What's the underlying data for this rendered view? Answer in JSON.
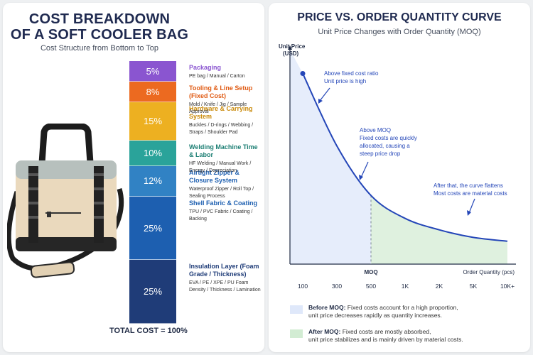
{
  "left": {
    "title_line1": "COST BREAKDOWN",
    "title_line2": "OF A SOFT COOLER BAG",
    "subtitle": "Cost Structure from Bottom to Top",
    "total": "TOTAL COST = 100%"
  },
  "right": {
    "title": "PRICE VS. ORDER QUANTITY CURVE",
    "subtitle": "Unit Price Changes with Order Quantity (MOQ)",
    "legend": [
      {
        "label": "Before MOQ:",
        "line1": "Fixed costs account for a high proportion,",
        "line2": "unit price decreases rapidly as quantity increases.",
        "color": "#dfe8fa"
      },
      {
        "label": "After MOQ:",
        "line1": "Fixed costs are mostly absorbed,",
        "line2": "unit price stabilizes and is mainly driven by material costs.",
        "color": "#d2ecd3"
      }
    ]
  },
  "colors": {
    "curve": "#2446b8",
    "before_region": "#e3ebfb",
    "after_region": "#dff1df"
  },
  "chart_data": [
    {
      "type": "bar",
      "stacked": true,
      "title": "COST BREAKDOWN OF A SOFT COOLER BAG",
      "subtitle": "Cost Structure from Bottom to Top",
      "unit": "%",
      "segments": [
        {
          "value": 25,
          "label": "25%",
          "name": "Insulation Layer (Foam Grade / Thickness)",
          "desc_line1": "EVA / PE / XPE / PU Foam",
          "desc_line2": "Density / Thickness / Lamination",
          "color": "#1f3c78"
        },
        {
          "value": 25,
          "label": "25%",
          "name": "Shell Fabric & Coating",
          "desc_line1": "TPU / PVC Fabric / Coating /",
          "desc_line2": "Backing",
          "color": "#1d5fb0"
        },
        {
          "value": 12,
          "label": "12%",
          "name": "Airtight Zipper & Closure System",
          "desc_line1": "Waterproof Zipper / Roll Top /",
          "desc_line2": "Sealing Process",
          "color": "#3182c4"
        },
        {
          "value": 10,
          "label": "10%",
          "name": "Welding Machine Time & Labor",
          "desc_line1": "HF Welding / Manual Work /",
          "desc_line2": "Energy / Depreciation",
          "color": "#2aa39a"
        },
        {
          "value": 15,
          "label": "15%",
          "name": "Hardware & Carrying System",
          "desc_line1": "Buckles / D-rings / Webbing /",
          "desc_line2": "Straps / Shoulder Pad",
          "color": "#edb021"
        },
        {
          "value": 8,
          "label": "8%",
          "name": "Tooling & Line Setup (Fixed Cost)",
          "desc_line1": "Mold / Knife / Jig / Sample",
          "desc_line2": "Approval",
          "color": "#ec6a20"
        },
        {
          "value": 5,
          "label": "5%",
          "name": "Packaging",
          "desc_line1": "PE bag / Manual / Carton",
          "desc_line2": "",
          "color": "#8a55d0"
        }
      ],
      "name_colors": [
        "#1f3c78",
        "#1d5fb0",
        "#1d5fb0",
        "#1d7f74",
        "#c98a0b",
        "#e05a12",
        "#8a55d0"
      ]
    },
    {
      "type": "line",
      "title": "PRICE VS. ORDER QUANTITY CURVE",
      "subtitle": "Unit Price Changes with Order Quantity (MOQ)",
      "ylabel_line1": "Unit Price",
      "ylabel_line2": "(USD)",
      "xlabel": "Order Quantity (pcs)",
      "x_ticks": [
        "100",
        "300",
        "500",
        "1K",
        "2K",
        "5K",
        "10K+"
      ],
      "moq_label": "MOQ",
      "moq_tick_index": 2,
      "curve": [
        {
          "x": 100,
          "y": 1.0
        },
        {
          "x": 300,
          "y": 0.62
        },
        {
          "x": 500,
          "y": 0.36
        },
        {
          "x": 1000,
          "y": 0.24
        },
        {
          "x": 2000,
          "y": 0.18
        },
        {
          "x": 5000,
          "y": 0.14
        },
        {
          "x": 10000,
          "y": 0.12
        }
      ],
      "annotations": [
        {
          "line1": "Above fixed cost ratio",
          "line2": "Unit price is high",
          "line3": ""
        },
        {
          "line1": "Above MOQ",
          "line2": "Fixed costs are quickly",
          "line3": "allocated, causing a",
          "line4": "steep price drop"
        },
        {
          "line1": "After that, the curve flattens",
          "line2": "Most costs are material costs",
          "line3": ""
        }
      ]
    }
  ]
}
